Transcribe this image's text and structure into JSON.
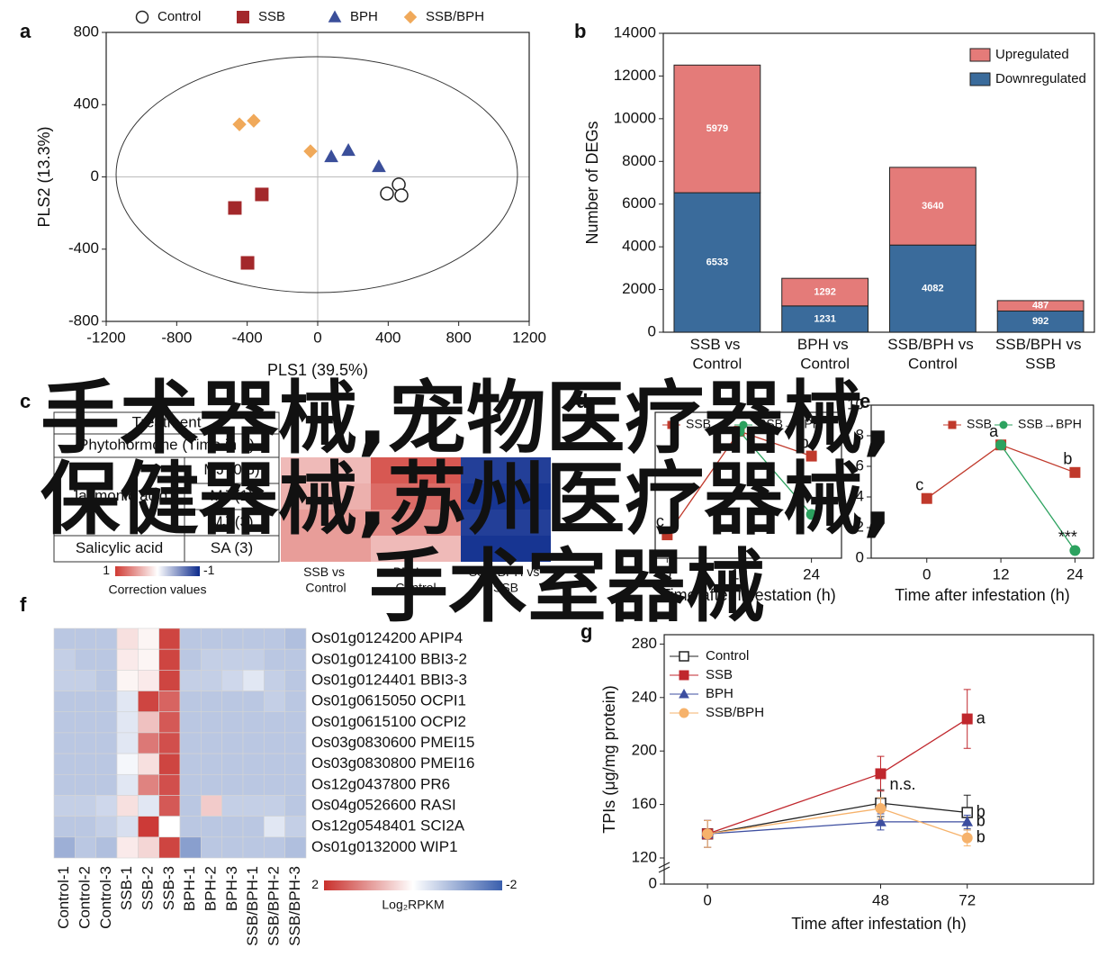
{
  "chart_data": [
    {
      "panel": "a",
      "type": "scatter",
      "xlabel": "PLS1 (39.5%)",
      "ylabel": "PLS2 (13.3%)",
      "xlim": [
        -1200,
        1200
      ],
      "xticks": [
        -1200,
        -800,
        -400,
        0,
        400,
        800,
        1200
      ],
      "ylim": [
        -800,
        800
      ],
      "yticks": [
        -800,
        -400,
        0,
        400,
        800
      ],
      "legend_position": "top",
      "series": [
        {
          "name": "Control",
          "color": "#222222",
          "marker": "open-circle",
          "x": [
            460,
            393,
            475
          ],
          "values": [
            -42,
            -92,
            -102
          ]
        },
        {
          "name": "SSB",
          "color": "#a3282b",
          "marker": "square",
          "x": [
            -470,
            -317,
            -398
          ],
          "values": [
            -172,
            -97,
            -476
          ]
        },
        {
          "name": "BPH",
          "color": "#3b4f9a",
          "marker": "triangle",
          "x": [
            77,
            174,
            347
          ],
          "values": [
            112,
            147,
            57
          ]
        },
        {
          "name": "SSB/BPH",
          "color": "#f0a95a",
          "marker": "diamond",
          "x": [
            -444,
            -363,
            -41
          ],
          "values": [
            291,
            311,
            142
          ]
        }
      ]
    },
    {
      "panel": "b",
      "type": "stacked_bar",
      "ylabel": "Number of DEGs",
      "categories": [
        "SSB vs Control",
        "BPH vs Control",
        "SSB/BPH vs Control",
        "SSB/BPH vs SSB"
      ],
      "ylim": [
        0,
        14000
      ],
      "yticks": [
        0,
        2000,
        4000,
        6000,
        8000,
        10000,
        12000,
        14000
      ],
      "legend_position": "upper right",
      "series": [
        {
          "name": "Downregulated",
          "color": "#3a6b9b",
          "values": [
            6533,
            1231,
            4082,
            992
          ]
        },
        {
          "name": "Upregulated",
          "color": "#e47b79",
          "values": [
            5979,
            1292,
            3640,
            487
          ]
        }
      ]
    },
    {
      "panel": "c",
      "type": "heatmap_table",
      "header": "Treatment",
      "subheader": "Phytohormone (Time in h)",
      "columns": [
        "SSB vs Control",
        "BPH vs Control",
        "SSB/BPH vs SSB"
      ],
      "groups": [
        {
          "name": "Jasmonic acid",
          "rows": [
            "MJ (0.5)",
            "MJ (1)",
            "MJ (3)"
          ],
          "values": [
            [
              0.35,
              0.85,
              -0.9
            ],
            [
              0.4,
              0.75,
              -0.95
            ],
            [
              0.5,
              0.6,
              -0.9
            ]
          ]
        },
        {
          "name": "Salicylic acid",
          "rows": [
            "SA (3)"
          ],
          "values": [
            [
              0.5,
              0.35,
              -0.95
            ]
          ]
        }
      ],
      "clim": [
        1,
        -1
      ],
      "cmap": [
        "#d03a33",
        "#ffffff",
        "#0b2a8c"
      ],
      "colorbar_label": "Correction values"
    },
    {
      "panel": "d",
      "type": "line",
      "xlabel": "Time after infestation (h)",
      "x": [
        0,
        12,
        24
      ],
      "xlim": [
        -2,
        29
      ],
      "xticks": [
        0,
        12,
        24
      ],
      "ylim": [
        0,
        1
      ],
      "legend_position": "top",
      "series": [
        {
          "name": "SSB",
          "color": "#c0392b",
          "marker": "square",
          "values": [
            0.16,
            0.87,
            0.7
          ],
          "point_labels": [
            "c",
            null,
            "b"
          ]
        },
        {
          "name": "SSB→BPH",
          "color": "#2ca25f",
          "marker": "circle",
          "values": [
            null,
            0.87,
            0.3
          ]
        }
      ]
    },
    {
      "panel": "e",
      "type": "line",
      "xlabel": "Time after infestation (h)",
      "x": [
        0,
        12,
        24
      ],
      "xlim": [
        -9,
        27
      ],
      "xticks": [
        0,
        12,
        24
      ],
      "ylim": [
        0,
        10
      ],
      "yticks": [
        0,
        2,
        4,
        6,
        8,
        10
      ],
      "legend_position": "top",
      "series": [
        {
          "name": "SSB",
          "color": "#c0392b",
          "marker": "square",
          "values": [
            3.9,
            7.4,
            5.6
          ],
          "point_labels": [
            "c",
            "a",
            "b"
          ]
        },
        {
          "name": "SSB→BPH",
          "color": "#2ca25f",
          "marker": "circle",
          "values": [
            null,
            7.4,
            0.5
          ],
          "point_labels": [
            null,
            null,
            "***"
          ]
        }
      ]
    },
    {
      "panel": "f",
      "type": "heatmap",
      "columns": [
        "Control-1",
        "Control-2",
        "Control-3",
        "SSB-1",
        "SSB-2",
        "SSB-3",
        "BPH-1",
        "BPH-2",
        "BPH-3",
        "SSB/BPH-1",
        "SSB/BPH-2",
        "SSB/BPH-3"
      ],
      "rows": [
        "Os01g0124200 APIP4",
        "Os01g0124100 BBI3-2",
        "Os01g0124401 BBI3-3",
        "Os01g0615050 OCPI1",
        "Os01g0615100 OCPI2",
        "Os03g0830600 PMEI15",
        "Os03g0830800 PMEI16",
        "Os12g0437800 PR6",
        "Os04g0526600 RASI",
        "Os12g0548401 SCI2A",
        "Os01g0132000 WIP1"
      ],
      "values": [
        [
          -0.7,
          -0.7,
          -0.7,
          0.3,
          0.1,
          1.8,
          -0.7,
          -0.7,
          -0.7,
          -0.7,
          -0.7,
          -0.8
        ],
        [
          -0.6,
          -0.7,
          -0.7,
          0.2,
          0.1,
          1.8,
          -0.7,
          -0.6,
          -0.6,
          -0.6,
          -0.7,
          -0.7
        ],
        [
          -0.6,
          -0.6,
          -0.7,
          0.1,
          0.2,
          1.8,
          -0.6,
          -0.6,
          -0.5,
          -0.3,
          -0.6,
          -0.7
        ],
        [
          -0.7,
          -0.7,
          -0.7,
          -0.3,
          1.8,
          1.5,
          -0.7,
          -0.7,
          -0.7,
          -0.7,
          -0.6,
          -0.7
        ],
        [
          -0.7,
          -0.7,
          -0.7,
          -0.3,
          0.6,
          1.6,
          -0.7,
          -0.7,
          -0.7,
          -0.7,
          -0.7,
          -0.7
        ],
        [
          -0.7,
          -0.7,
          -0.7,
          -0.3,
          1.3,
          1.7,
          -0.7,
          -0.7,
          -0.7,
          -0.7,
          -0.7,
          -0.7
        ],
        [
          -0.7,
          -0.7,
          -0.7,
          -0.1,
          0.3,
          1.8,
          -0.7,
          -0.7,
          -0.7,
          -0.7,
          -0.7,
          -0.7
        ],
        [
          -0.7,
          -0.7,
          -0.7,
          -0.3,
          1.2,
          1.7,
          -0.7,
          -0.7,
          -0.7,
          -0.7,
          -0.7,
          -0.7
        ],
        [
          -0.6,
          -0.6,
          -0.5,
          0.3,
          -0.3,
          1.6,
          -0.7,
          0.5,
          -0.6,
          -0.6,
          -0.6,
          -0.7
        ],
        [
          -0.7,
          -0.7,
          -0.6,
          -0.4,
          1.9,
          0,
          -0.7,
          -0.7,
          -0.7,
          -0.7,
          -0.3,
          -0.6
        ],
        [
          -1,
          -0.7,
          -0.8,
          0.2,
          0.4,
          1.8,
          -1.2,
          -0.7,
          -0.7,
          -0.7,
          -0.7,
          -0.8
        ]
      ],
      "clim": [
        2,
        -2
      ],
      "cmap": [
        "#c9302c",
        "#ffffff",
        "#3a5fad"
      ],
      "colorbar_label": "Log₂RPKM"
    },
    {
      "panel": "g",
      "type": "line",
      "xlabel": "Time after infestation (h)",
      "ylabel": "TPIs (μg/mg protein)",
      "x": [
        0,
        48,
        72
      ],
      "xlim": [
        -12,
        107
      ],
      "xticks": [
        0,
        48,
        72
      ],
      "ylim": [
        0,
        287
      ],
      "yticks": [
        0,
        120,
        160,
        200,
        240,
        280
      ],
      "ybreak": 120,
      "legend_position": "upper left",
      "series": [
        {
          "name": "Control",
          "color": "#222222",
          "marker": "open-square",
          "values": [
            138,
            161,
            154
          ],
          "errors": [
            10,
            10,
            13
          ],
          "point_labels": [
            null,
            "n.s.",
            "b"
          ]
        },
        {
          "name": "SSB",
          "color": "#c0272d",
          "marker": "square",
          "values": [
            138,
            183,
            224
          ],
          "errors": [
            10,
            13,
            22
          ],
          "point_labels": [
            null,
            null,
            "a"
          ]
        },
        {
          "name": "BPH",
          "color": "#3d4ea0",
          "marker": "triangle",
          "values": [
            138,
            147,
            147
          ],
          "errors": [
            10,
            6,
            5
          ],
          "point_labels": [
            null,
            null,
            "b"
          ]
        },
        {
          "name": "SSB/BPH",
          "color": "#f6b26b",
          "marker": "circle",
          "values": [
            138,
            157,
            135
          ],
          "errors": [
            10,
            8,
            6
          ],
          "point_labels": [
            null,
            null,
            "b"
          ]
        }
      ]
    }
  ],
  "watermark": {
    "lines": [
      "手术器械,宠物医疗器械,",
      "保健器械,苏州医疗器械,",
      "手术室器械"
    ],
    "color": "#1a8cf0"
  }
}
